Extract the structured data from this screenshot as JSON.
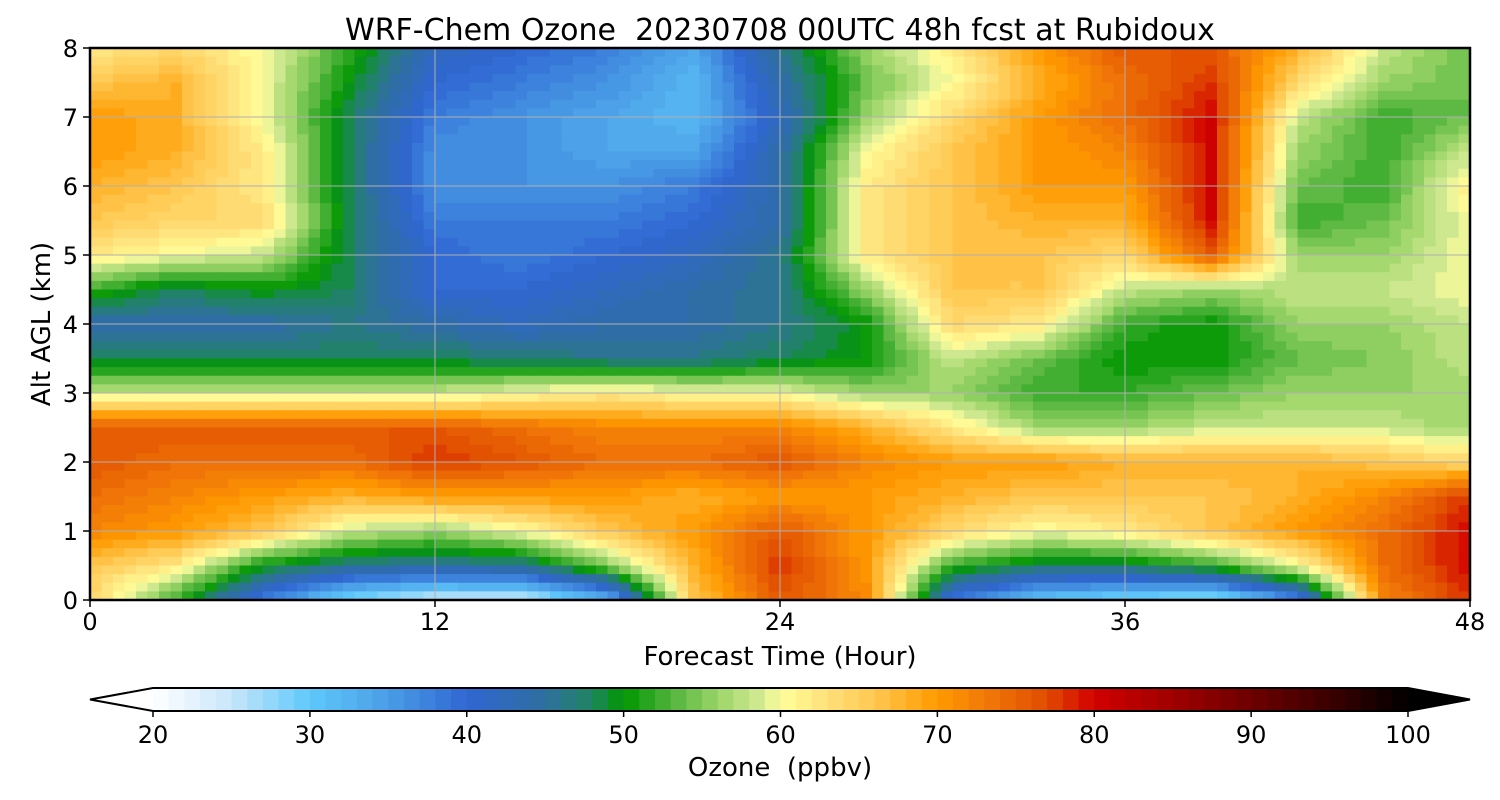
{
  "chart_data": {
    "type": "heatmap",
    "title": "WRF-Chem Ozone  20230708 00UTC 48h fcst at Rubidoux",
    "xlabel": "Forecast Time (Hour)",
    "ylabel": "Alt AGL (km)",
    "xlim": [
      0,
      48
    ],
    "ylim": [
      0,
      8
    ],
    "x_ticks": [
      "0",
      "12",
      "24",
      "36",
      "48"
    ],
    "y_ticks": [
      "0",
      "1",
      "2",
      "3",
      "4",
      "5",
      "6",
      "7",
      "8"
    ],
    "grid": true,
    "x_hours": [
      0,
      3,
      6,
      9,
      12,
      15,
      18,
      21,
      24,
      27,
      30,
      33,
      36,
      39,
      42,
      45,
      48
    ],
    "z_km": [
      0,
      0.5,
      1,
      1.5,
      2,
      2.5,
      3,
      3.5,
      4,
      4.5,
      5,
      5.5,
      6,
      6.5,
      7,
      7.5,
      8
    ],
    "values_ppbv": [
      [
        64,
        52,
        38,
        28,
        24,
        24,
        32,
        66,
        76,
        72,
        38,
        30,
        28,
        26,
        36,
        72,
        78
      ],
      [
        66,
        62,
        50,
        46,
        45,
        46,
        55,
        68,
        78,
        70,
        52,
        48,
        48,
        52,
        60,
        74,
        80
      ],
      [
        72,
        70,
        66,
        58,
        56,
        60,
        66,
        70,
        76,
        70,
        64,
        60,
        62,
        66,
        70,
        74,
        80
      ],
      [
        74,
        72,
        70,
        68,
        70,
        70,
        70,
        68,
        70,
        70,
        68,
        66,
        66,
        66,
        68,
        72,
        78
      ],
      [
        76,
        74,
        74,
        74,
        78,
        76,
        74,
        74,
        76,
        72,
        70,
        70,
        68,
        68,
        68,
        66,
        64
      ],
      [
        76,
        76,
        76,
        76,
        76,
        74,
        72,
        72,
        72,
        68,
        62,
        56,
        56,
        58,
        58,
        58,
        56
      ],
      [
        58,
        58,
        58,
        58,
        58,
        60,
        62,
        60,
        60,
        56,
        56,
        52,
        52,
        54,
        56,
        56,
        56
      ],
      [
        48,
        48,
        48,
        48,
        48,
        47,
        46,
        46,
        48,
        50,
        58,
        54,
        50,
        50,
        54,
        55,
        58
      ],
      [
        44,
        44,
        44,
        46,
        44,
        42,
        44,
        44,
        46,
        50,
        64,
        62,
        52,
        50,
        56,
        56,
        58
      ],
      [
        52,
        48,
        50,
        48,
        40,
        40,
        42,
        44,
        46,
        56,
        66,
        66,
        58,
        56,
        58,
        58,
        60
      ],
      [
        62,
        60,
        58,
        48,
        40,
        38,
        40,
        42,
        46,
        62,
        66,
        66,
        64,
        76,
        56,
        56,
        60
      ],
      [
        66,
        64,
        64,
        48,
        38,
        38,
        38,
        40,
        44,
        62,
        66,
        68,
        68,
        80,
        52,
        54,
        60
      ],
      [
        68,
        66,
        62,
        48,
        36,
        36,
        36,
        38,
        44,
        62,
        66,
        70,
        70,
        80,
        54,
        52,
        62
      ],
      [
        70,
        68,
        62,
        48,
        36,
        36,
        34,
        34,
        44,
        60,
        66,
        70,
        72,
        80,
        56,
        52,
        58
      ],
      [
        70,
        68,
        60,
        48,
        38,
        36,
        34,
        32,
        42,
        56,
        64,
        70,
        74,
        80,
        58,
        52,
        54
      ],
      [
        66,
        68,
        60,
        50,
        40,
        38,
        36,
        32,
        44,
        54,
        60,
        68,
        74,
        78,
        64,
        56,
        54
      ],
      [
        62,
        64,
        60,
        52,
        42,
        40,
        38,
        34,
        46,
        56,
        62,
        70,
        76,
        76,
        68,
        58,
        54
      ]
    ],
    "colorbar": {
      "label": "Ozone  (ppbv)",
      "min": 20,
      "max": 100,
      "step": 1,
      "extend": "both",
      "ticks": [
        "20",
        "30",
        "40",
        "50",
        "60",
        "70",
        "80",
        "90",
        "100"
      ],
      "color_stops": [
        {
          "v": 20,
          "c": "#ffffff"
        },
        {
          "v": 25,
          "c": "#c8e6fa"
        },
        {
          "v": 30,
          "c": "#5ec8fa"
        },
        {
          "v": 35,
          "c": "#4a9de6"
        },
        {
          "v": 40,
          "c": "#2f66d2"
        },
        {
          "v": 45,
          "c": "#2e6fa0"
        },
        {
          "v": 48,
          "c": "#1f8560"
        },
        {
          "v": 50,
          "c": "#009600"
        },
        {
          "v": 53,
          "c": "#50b43c"
        },
        {
          "v": 56,
          "c": "#9cd468"
        },
        {
          "v": 59,
          "c": "#d8ec98"
        },
        {
          "v": 60,
          "c": "#ffff9a"
        },
        {
          "v": 63,
          "c": "#ffe07a"
        },
        {
          "v": 66,
          "c": "#ffc850"
        },
        {
          "v": 70,
          "c": "#ff9a00"
        },
        {
          "v": 73,
          "c": "#f27a08"
        },
        {
          "v": 77,
          "c": "#e04c00"
        },
        {
          "v": 80,
          "c": "#d20000"
        },
        {
          "v": 85,
          "c": "#a00000"
        },
        {
          "v": 90,
          "c": "#6e0000"
        },
        {
          "v": 95,
          "c": "#3c0000"
        },
        {
          "v": 100,
          "c": "#000000"
        }
      ]
    }
  }
}
